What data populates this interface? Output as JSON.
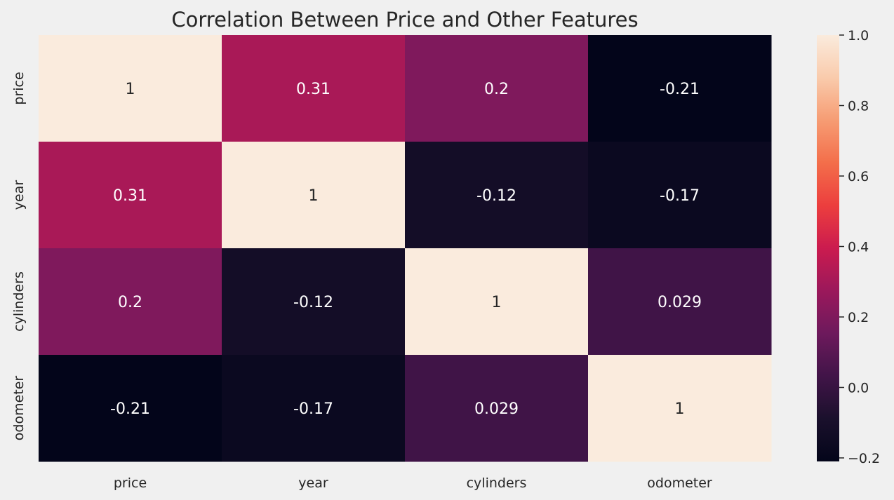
{
  "background": "#f0f0f0",
  "chart_data": {
    "type": "heatmap",
    "title": "Correlation Between Price and Other Features",
    "xlabel": "",
    "ylabel": "",
    "x_categories": [
      "price",
      "year",
      "cylinders",
      "odometer"
    ],
    "y_categories": [
      "price",
      "year",
      "cylinders",
      "odometer"
    ],
    "values": [
      [
        1,
        0.31,
        0.2,
        -0.21
      ],
      [
        0.31,
        1,
        -0.12,
        -0.17
      ],
      [
        0.2,
        -0.12,
        1,
        0.029
      ],
      [
        -0.21,
        -0.17,
        0.029,
        1
      ]
    ],
    "annotations": [
      [
        "1",
        "0.31",
        "0.2",
        "-0.21"
      ],
      [
        "0.31",
        "1",
        "-0.12",
        "-0.17"
      ],
      [
        "0.2",
        "-0.12",
        "1",
        "0.029"
      ],
      [
        "-0.21",
        "-0.17",
        "0.029",
        "1"
      ]
    ],
    "colormap": "rocket",
    "colorbar": {
      "range": [
        -0.21,
        1.0
      ],
      "ticks": [
        -0.2,
        0.0,
        0.2,
        0.4,
        0.6,
        0.8,
        1.0
      ],
      "tick_labels": [
        "−0.2",
        "0.0",
        "0.2",
        "0.4",
        "0.6",
        "0.8",
        "1.0"
      ],
      "position": "right"
    },
    "grid": false,
    "annotation_light_color": "#ffffff",
    "annotation_dark_color": "#262626",
    "text_color": "#262626"
  }
}
